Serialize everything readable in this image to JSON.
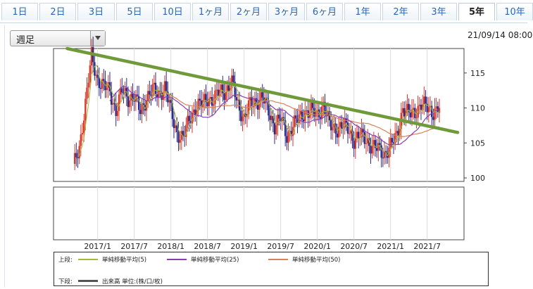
{
  "tabs": [
    {
      "label": "1日"
    },
    {
      "label": "2日"
    },
    {
      "label": "3日"
    },
    {
      "label": "5日"
    },
    {
      "label": "10日"
    },
    {
      "label": "1ヶ月"
    },
    {
      "label": "2ヶ月"
    },
    {
      "label": "3ヶ月"
    },
    {
      "label": "6ヶ月"
    },
    {
      "label": "1年"
    },
    {
      "label": "2年"
    },
    {
      "label": "3年"
    },
    {
      "label": "5年",
      "active": true
    },
    {
      "label": "10年"
    }
  ],
  "period_select": {
    "value": "週足"
  },
  "timestamp": "21/09/14 08:00",
  "legend": {
    "upper_label": "上段:",
    "lower_label": "下段:",
    "ma5": "単純移動平均(5)",
    "ma25": "単純移動平均(25)",
    "ma50": "単純移動平均(50)",
    "volume": "出来高 単位:(株/口/枚)"
  },
  "colors": {
    "candle_up": "#d63a2a",
    "candle_down": "#2a2a88",
    "ma5": "#a6b93a",
    "ma25": "#8a3fb0",
    "ma50": "#d9825a",
    "trendline": "#6f9a3a"
  },
  "chart_data": {
    "type": "candlestick",
    "x_ticks": [
      "2017/1",
      "2017/7",
      "2018/1",
      "2018/7",
      "2019/1",
      "2019/7",
      "2020/1",
      "2020/7",
      "2021/1",
      "2021/7"
    ],
    "y_ticks": [
      100,
      105,
      110,
      115
    ],
    "ylim": [
      99.5,
      118.5
    ],
    "x_range": [
      "2016/09",
      "2021/09"
    ],
    "close_approx": [
      [
        "2016/09",
        101.5
      ],
      [
        "2016/10",
        104.5
      ],
      [
        "2016/11",
        110.5
      ],
      [
        "2016/12",
        117.5
      ],
      [
        "2017/01",
        114.0
      ],
      [
        "2017/02",
        113.0
      ],
      [
        "2017/03",
        112.5
      ],
      [
        "2017/04",
        109.5
      ],
      [
        "2017/05",
        112.5
      ],
      [
        "2017/06",
        111.5
      ],
      [
        "2017/07",
        111.5
      ],
      [
        "2017/08",
        109.5
      ],
      [
        "2017/09",
        111.5
      ],
      [
        "2017/10",
        112.5
      ],
      [
        "2017/11",
        112.0
      ],
      [
        "2017/12",
        113.0
      ],
      [
        "2018/01",
        109.5
      ],
      [
        "2018/02",
        106.5
      ],
      [
        "2018/03",
        105.5
      ],
      [
        "2018/04",
        108.5
      ],
      [
        "2018/05",
        110.0
      ],
      [
        "2018/06",
        110.5
      ],
      [
        "2018/07",
        111.5
      ],
      [
        "2018/08",
        111.0
      ],
      [
        "2018/09",
        112.5
      ],
      [
        "2018/10",
        112.5
      ],
      [
        "2018/11",
        113.5
      ],
      [
        "2018/12",
        110.5
      ],
      [
        "2019/01",
        108.5
      ],
      [
        "2019/02",
        110.5
      ],
      [
        "2019/03",
        111.0
      ],
      [
        "2019/04",
        111.5
      ],
      [
        "2019/05",
        109.5
      ],
      [
        "2019/06",
        107.5
      ],
      [
        "2019/07",
        108.5
      ],
      [
        "2019/08",
        106.0
      ],
      [
        "2019/09",
        107.5
      ],
      [
        "2019/10",
        108.5
      ],
      [
        "2019/11",
        109.5
      ],
      [
        "2019/12",
        109.5
      ],
      [
        "2020/01",
        109.0
      ],
      [
        "2020/02",
        110.5
      ],
      [
        "2020/03",
        107.5
      ],
      [
        "2020/04",
        107.0
      ],
      [
        "2020/05",
        107.5
      ],
      [
        "2020/06",
        107.0
      ],
      [
        "2020/07",
        105.5
      ],
      [
        "2020/08",
        106.0
      ],
      [
        "2020/09",
        105.5
      ],
      [
        "2020/10",
        104.5
      ],
      [
        "2020/11",
        104.0
      ],
      [
        "2020/12",
        103.5
      ],
      [
        "2021/01",
        104.5
      ],
      [
        "2021/02",
        106.0
      ],
      [
        "2021/03",
        110.0
      ],
      [
        "2021/04",
        109.0
      ],
      [
        "2021/05",
        109.5
      ],
      [
        "2021/06",
        110.5
      ],
      [
        "2021/07",
        110.0
      ],
      [
        "2021/08",
        109.5
      ],
      [
        "2021/09",
        110.0
      ]
    ],
    "trendline": {
      "start": [
        "2016/08",
        118.5
      ],
      "end": [
        "2021/12",
        106.5
      ]
    },
    "lower_panel": "volume"
  }
}
